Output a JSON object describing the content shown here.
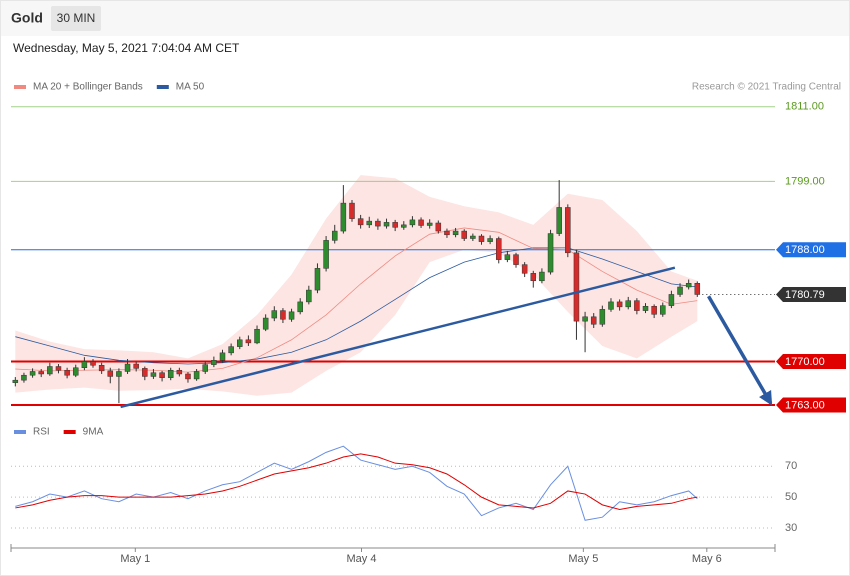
{
  "header": {
    "title": "Gold",
    "interval": "30 MIN",
    "date": "Wednesday, May 5, 2021 7:04:04 AM CET",
    "credit": "Research © 2021 Trading Central"
  },
  "chart_data": [
    {
      "type": "candlestick",
      "xlim": [
        -0.5,
        88
      ],
      "ylim": [
        1762.2,
        1812.9
      ],
      "up_color": "#2e8b2e",
      "down_color": "#d62b2b",
      "candles": [
        [
          1766.6,
          1767.5,
          1766.0,
          1767.0
        ],
        [
          1767.0,
          1768.2,
          1766.6,
          1767.8
        ],
        [
          1767.8,
          1768.9,
          1767.4,
          1768.4
        ],
        [
          1768.4,
          1768.8,
          1767.5,
          1768.0
        ],
        [
          1768.0,
          1769.8,
          1767.7,
          1769.2
        ],
        [
          1769.2,
          1769.6,
          1768.1,
          1768.6
        ],
        [
          1768.6,
          1769.0,
          1767.3,
          1767.8
        ],
        [
          1767.8,
          1769.5,
          1767.5,
          1769.0
        ],
        [
          1769.0,
          1770.7,
          1768.6,
          1770.0
        ],
        [
          1770.0,
          1770.4,
          1769.0,
          1769.4
        ],
        [
          1769.4,
          1769.8,
          1768.0,
          1768.5
        ],
        [
          1768.5,
          1769.0,
          1766.5,
          1767.6
        ],
        [
          1767.6,
          1768.9,
          1763.3,
          1768.4
        ],
        [
          1768.4,
          1770.4,
          1768.0,
          1769.6
        ],
        [
          1769.6,
          1770.0,
          1768.4,
          1768.9
        ],
        [
          1768.9,
          1769.2,
          1767.0,
          1767.6
        ],
        [
          1767.6,
          1768.8,
          1767.2,
          1768.2
        ],
        [
          1768.2,
          1768.5,
          1766.8,
          1767.4
        ],
        [
          1767.4,
          1769.0,
          1767.0,
          1768.6
        ],
        [
          1768.6,
          1769.0,
          1767.6,
          1768.0
        ],
        [
          1768.0,
          1768.3,
          1766.6,
          1767.2
        ],
        [
          1767.2,
          1768.8,
          1766.9,
          1768.4
        ],
        [
          1768.4,
          1770.0,
          1768.0,
          1769.5
        ],
        [
          1769.5,
          1770.8,
          1769.1,
          1770.2
        ],
        [
          1770.2,
          1771.9,
          1769.8,
          1771.4
        ],
        [
          1771.4,
          1772.9,
          1771.0,
          1772.4
        ],
        [
          1772.4,
          1774.0,
          1772.0,
          1773.5
        ],
        [
          1773.5,
          1774.2,
          1772.5,
          1773.0
        ],
        [
          1773.0,
          1775.8,
          1772.8,
          1775.2
        ],
        [
          1775.2,
          1777.6,
          1774.9,
          1777.0
        ],
        [
          1777.0,
          1778.9,
          1776.5,
          1778.2
        ],
        [
          1778.2,
          1778.6,
          1776.2,
          1776.8
        ],
        [
          1776.8,
          1778.5,
          1776.4,
          1778.0
        ],
        [
          1778.0,
          1780.2,
          1777.6,
          1779.6
        ],
        [
          1779.6,
          1782.2,
          1779.2,
          1781.5
        ],
        [
          1781.5,
          1785.8,
          1781.0,
          1785.0
        ],
        [
          1785.0,
          1790.2,
          1784.5,
          1789.5
        ],
        [
          1789.5,
          1792.0,
          1789.0,
          1791.0
        ],
        [
          1791.0,
          1798.4,
          1790.6,
          1795.5
        ],
        [
          1795.5,
          1796.0,
          1792.5,
          1793.0
        ],
        [
          1793.0,
          1793.6,
          1791.4,
          1792.0
        ],
        [
          1792.0,
          1793.3,
          1791.5,
          1792.6
        ],
        [
          1792.6,
          1793.0,
          1791.2,
          1791.8
        ],
        [
          1791.8,
          1793.0,
          1791.4,
          1792.4
        ],
        [
          1792.4,
          1792.8,
          1791.0,
          1791.6
        ],
        [
          1791.6,
          1792.6,
          1791.2,
          1792.0
        ],
        [
          1792.0,
          1793.4,
          1791.6,
          1792.8
        ],
        [
          1792.8,
          1793.2,
          1791.5,
          1791.9
        ],
        [
          1791.9,
          1792.9,
          1791.4,
          1792.3
        ],
        [
          1792.3,
          1792.7,
          1790.6,
          1791.0
        ],
        [
          1791.0,
          1791.4,
          1789.9,
          1790.4
        ],
        [
          1790.4,
          1791.5,
          1790.0,
          1791.0
        ],
        [
          1791.0,
          1791.3,
          1789.4,
          1789.8
        ],
        [
          1789.8,
          1790.6,
          1789.4,
          1790.2
        ],
        [
          1790.2,
          1790.5,
          1788.8,
          1789.3
        ],
        [
          1789.3,
          1790.3,
          1788.9,
          1789.8
        ],
        [
          1789.8,
          1790.1,
          1785.8,
          1786.4
        ],
        [
          1786.4,
          1787.8,
          1786.0,
          1787.2
        ],
        [
          1787.2,
          1787.5,
          1785.1,
          1785.6
        ],
        [
          1785.6,
          1786.0,
          1783.6,
          1784.2
        ],
        [
          1784.2,
          1784.6,
          1781.9,
          1783.0
        ],
        [
          1783.0,
          1785.0,
          1782.6,
          1784.4
        ],
        [
          1784.4,
          1791.2,
          1784.0,
          1790.6
        ],
        [
          1790.6,
          1799.2,
          1790.2,
          1794.8
        ],
        [
          1794.8,
          1795.3,
          1786.8,
          1787.5
        ],
        [
          1787.5,
          1788.0,
          1773.5,
          1776.5
        ],
        [
          1776.5,
          1778.0,
          1771.5,
          1777.2
        ],
        [
          1777.2,
          1777.8,
          1775.4,
          1776.0
        ],
        [
          1776.0,
          1779.0,
          1775.6,
          1778.4
        ],
        [
          1778.4,
          1780.2,
          1778.0,
          1779.6
        ],
        [
          1779.6,
          1780.0,
          1778.2,
          1778.8
        ],
        [
          1778.8,
          1780.4,
          1778.4,
          1779.8
        ],
        [
          1779.8,
          1780.2,
          1777.6,
          1778.2
        ],
        [
          1778.2,
          1779.4,
          1777.8,
          1778.9
        ],
        [
          1778.9,
          1779.2,
          1777.0,
          1777.6
        ],
        [
          1777.6,
          1779.5,
          1777.2,
          1779.0
        ],
        [
          1779.0,
          1781.4,
          1778.6,
          1780.8
        ],
        [
          1780.8,
          1782.6,
          1780.4,
          1782.0
        ],
        [
          1782.0,
          1783.2,
          1781.6,
          1782.6
        ],
        [
          1782.6,
          1782.9,
          1780.4,
          1780.79
        ]
      ],
      "series": [
        {
          "name": "MA 20 + Bollinger Bands",
          "color": "#f08a80",
          "x": [
            0,
            4,
            8,
            12,
            16,
            20,
            24,
            28,
            32,
            36,
            40,
            44,
            48,
            52,
            56,
            60,
            64,
            68,
            72,
            76,
            79
          ],
          "values": [
            1768.8,
            1768.5,
            1768.6,
            1768.7,
            1768.6,
            1768.3,
            1768.9,
            1770.6,
            1773.5,
            1777.5,
            1782.5,
            1787.0,
            1790.5,
            1791.5,
            1790.8,
            1788.2,
            1788.0,
            1784.5,
            1781.5,
            1779.2,
            1779.8
          ],
          "upper": [
            1775.0,
            1773.2,
            1772.0,
            1771.8,
            1771.5,
            1770.5,
            1772.8,
            1777.5,
            1784.0,
            1793.0,
            1800.0,
            1799.5,
            1796.5,
            1795.0,
            1794.0,
            1792.0,
            1797.0,
            1796.0,
            1791.0,
            1784.5,
            1783.0
          ],
          "lower": [
            1765.0,
            1765.5,
            1765.8,
            1765.3,
            1765.4,
            1765.6,
            1765.2,
            1764.5,
            1765.0,
            1768.5,
            1771.5,
            1777.5,
            1786.0,
            1788.0,
            1787.5,
            1784.0,
            1778.0,
            1772.5,
            1770.5,
            1774.0,
            1776.5
          ]
        },
        {
          "name": "MA 50",
          "color": "#2c5aa0",
          "x": [
            0,
            4,
            8,
            12,
            16,
            20,
            24,
            28,
            32,
            36,
            40,
            44,
            48,
            52,
            56,
            60,
            64,
            68,
            72,
            76,
            79
          ],
          "values": [
            1774.0,
            1772.5,
            1771.0,
            1770.2,
            1769.8,
            1769.6,
            1769.8,
            1770.4,
            1771.5,
            1773.5,
            1776.5,
            1780.0,
            1783.5,
            1786.0,
            1787.5,
            1788.3,
            1788.3,
            1786.5,
            1784.5,
            1782.5,
            1782.0
          ]
        }
      ],
      "levels": [
        {
          "value": 1811,
          "label": "1811.00",
          "color": "#8cc56a",
          "style": "text"
        },
        {
          "value": 1799,
          "label": "1799.00",
          "color": "#8cc56a",
          "style": "text"
        },
        {
          "value": 1788,
          "label": "1788.00",
          "color": "#1f6fe5",
          "style": "box"
        },
        {
          "value": 1780.79,
          "label": "1780.79",
          "color": "#333333",
          "style": "dotted"
        },
        {
          "value": 1770,
          "label": "1770.00",
          "color": "#e00000",
          "style": "box"
        },
        {
          "value": 1763,
          "label": "1763.00",
          "color": "#e00000",
          "style": "box"
        }
      ],
      "trendline": {
        "x": [
          12.2,
          76.4
        ],
        "y": [
          1762.7,
          1785.1
        ],
        "color": "#2c5aa0"
      },
      "arrow": {
        "x": [
          80.3,
          87.5
        ],
        "y": [
          1780.5,
          1763.3
        ],
        "color": "#2c5aa0"
      }
    },
    {
      "type": "line",
      "xlim": [
        -0.5,
        88
      ],
      "ylim": [
        19,
        87
      ],
      "yticks": [
        70,
        50,
        30
      ],
      "xticks": [
        {
          "value": 13.9,
          "label": "May 1"
        },
        {
          "value": 40.1,
          "label": "May 4"
        },
        {
          "value": 65.8,
          "label": "May 5"
        },
        {
          "value": 80.1,
          "label": "May 6"
        }
      ],
      "series": [
        {
          "name": "RSI",
          "color": "#6a8fe0",
          "x": [
            0,
            2,
            4,
            6,
            8,
            10,
            12,
            14,
            16,
            18,
            20,
            22,
            24,
            26,
            28,
            30,
            32,
            34,
            36,
            38,
            40,
            42,
            44,
            46,
            48,
            50,
            52,
            54,
            56,
            58,
            60,
            62,
            64,
            66,
            68,
            70,
            72,
            74,
            76,
            78,
            79
          ],
          "values": [
            44,
            47,
            52,
            50,
            54,
            49,
            47,
            52,
            50,
            53,
            49,
            54,
            58,
            60,
            66,
            72,
            68,
            73,
            79,
            83,
            74,
            71,
            68,
            70,
            66,
            57,
            52,
            38,
            43,
            46,
            42,
            58,
            70,
            35,
            37,
            47,
            45,
            47,
            51,
            54,
            49
          ]
        },
        {
          "name": "9MA",
          "color": "#e00000",
          "x": [
            0,
            2,
            4,
            6,
            8,
            10,
            12,
            14,
            16,
            18,
            20,
            22,
            24,
            26,
            28,
            30,
            32,
            34,
            36,
            38,
            40,
            42,
            44,
            46,
            48,
            50,
            52,
            54,
            56,
            58,
            60,
            62,
            64,
            66,
            68,
            70,
            72,
            74,
            76,
            78,
            79
          ],
          "values": [
            43,
            45,
            48,
            50,
            51,
            51,
            50,
            50,
            50,
            50,
            51,
            52,
            54,
            57,
            61,
            65,
            67,
            69,
            72,
            76,
            78,
            76,
            72,
            71,
            69,
            65,
            58,
            50,
            45,
            44,
            43,
            46,
            54,
            52,
            45,
            42,
            44,
            45,
            46,
            49,
            50
          ]
        }
      ]
    }
  ]
}
